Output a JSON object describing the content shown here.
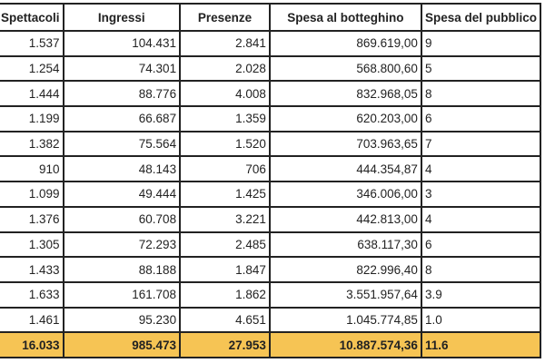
{
  "headers": [
    "Spettacoli",
    "Ingressi",
    "Presenze",
    "Spesa al botteghino",
    "Spesa del pubblico"
  ],
  "visible_headers": [
    "ettacoli",
    "Ingressi",
    "Presenze",
    "Spesa al botteghino",
    "Spesa del p"
  ],
  "rows": [
    [
      "1.537",
      "104.431",
      "2.841",
      "869.619,00",
      "9"
    ],
    [
      "1.254",
      "74.301",
      "2.028",
      "568.800,60",
      "5"
    ],
    [
      "1.444",
      "88.776",
      "4.008",
      "832.968,05",
      "8"
    ],
    [
      "1.199",
      "66.687",
      "1.359",
      "620.203,00",
      "6"
    ],
    [
      "1.382",
      "75.564",
      "1.520",
      "703.963,65",
      "7"
    ],
    [
      "910",
      "48.143",
      "706",
      "444.354,87",
      "4"
    ],
    [
      "1.099",
      "49.444",
      "1.425",
      "346.006,00",
      "3"
    ],
    [
      "1.376",
      "60.708",
      "3.221",
      "442.813,00",
      "4"
    ],
    [
      "1.305",
      "72.293",
      "2.485",
      "638.117,30",
      "6"
    ],
    [
      "1.433",
      "88.188",
      "1.847",
      "822.996,40",
      "8"
    ],
    [
      "1.633",
      "161.708",
      "1.862",
      "3.551.957,64",
      "3.9"
    ],
    [
      "1.461",
      "95.230",
      "4.651",
      "1.045.774,85",
      "1.0"
    ]
  ],
  "total": [
    "16.033",
    "985.473",
    "27.953",
    "10.887.574,36",
    "11.6"
  ],
  "colors": {
    "total_bg": "#f6c454"
  }
}
